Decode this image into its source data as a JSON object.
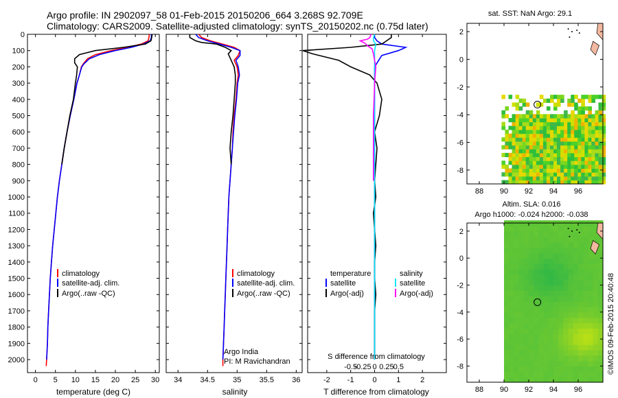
{
  "header": {
    "title_line1": "Argo profile: IN 2902097_58 01-Feb-2015 20150206_664 3.268S 92.709E",
    "title_line2": "Climatology: CARS2009. Satellite-adjusted climatology: synTS_20150202.nc (0.75d later)"
  },
  "footer": {
    "credit": "©IMOS 09-Feb-2015 20:40:48"
  },
  "colors": {
    "climatology": "#ff0000",
    "satellite": "#0000ff",
    "argo": "#000000",
    "salinity_satellite": "#00e5ff",
    "salinity_argo": "#ff00ff"
  },
  "chart_data": [
    {
      "id": "temperature_panel",
      "type": "line",
      "xlabel": "temperature (deg C)",
      "ylabel": "",
      "xlim": [
        -2,
        31
      ],
      "ylim": [
        2080,
        0
      ],
      "xticks": [
        0,
        5,
        10,
        15,
        20,
        25,
        30
      ],
      "yticks": [
        0,
        100,
        200,
        300,
        400,
        500,
        600,
        700,
        800,
        900,
        1000,
        1100,
        1200,
        1300,
        1400,
        1500,
        1600,
        1700,
        1800,
        1900,
        2000
      ],
      "legend": [
        "climatology",
        "satellite-adj. clim.",
        "Argo(..raw -QC)"
      ],
      "legend_position": "lower-right",
      "series": [
        {
          "name": "climatology",
          "color": "#ff0000",
          "points": [
            [
              28.5,
              0
            ],
            [
              28.4,
              20
            ],
            [
              28.2,
              40
            ],
            [
              26.5,
              60
            ],
            [
              23,
              80
            ],
            [
              19,
              100
            ],
            [
              15,
              125
            ],
            [
              13,
              150
            ],
            [
              12,
              180
            ],
            [
              11.5,
              200
            ],
            [
              11,
              250
            ],
            [
              10.4,
              300
            ],
            [
              9.6,
              400
            ],
            [
              8.7,
              500
            ],
            [
              7.9,
              600
            ],
            [
              7.2,
              700
            ],
            [
              6.6,
              800
            ],
            [
              6,
              900
            ],
            [
              5.5,
              1000
            ],
            [
              5.1,
              1100
            ],
            [
              4.7,
              1200
            ],
            [
              4.3,
              1300
            ],
            [
              4,
              1400
            ],
            [
              3.7,
              1500
            ],
            [
              3.5,
              1600
            ],
            [
              3.3,
              1700
            ],
            [
              3.1,
              1800
            ],
            [
              3,
              1900
            ],
            [
              2.8,
              2000
            ],
            [
              2.7,
              2040
            ]
          ]
        },
        {
          "name": "satellite-adj. clim.",
          "color": "#0000ff",
          "points": [
            [
              29,
              0
            ],
            [
              29,
              20
            ],
            [
              28.7,
              40
            ],
            [
              27,
              60
            ],
            [
              24,
              80
            ],
            [
              20,
              100
            ],
            [
              16,
              125
            ],
            [
              13.5,
              150
            ],
            [
              12.2,
              180
            ],
            [
              11.6,
              200
            ],
            [
              11,
              250
            ],
            [
              10.4,
              300
            ],
            [
              9.6,
              400
            ],
            [
              8.7,
              500
            ],
            [
              7.9,
              600
            ],
            [
              7.2,
              700
            ],
            [
              6.6,
              800
            ],
            [
              6,
              900
            ],
            [
              5.5,
              1000
            ],
            [
              5.1,
              1100
            ],
            [
              4.7,
              1200
            ],
            [
              4.3,
              1300
            ],
            [
              4,
              1400
            ],
            [
              3.7,
              1500
            ],
            [
              3.5,
              1600
            ],
            [
              3.3,
              1700
            ],
            [
              3.1,
              1800
            ],
            [
              3,
              1900
            ],
            [
              2.8,
              2000
            ]
          ]
        },
        {
          "name": "Argo(..raw -QC)",
          "color": "#000000",
          "points": [
            [
              29.2,
              0
            ],
            [
              29.1,
              20
            ],
            [
              28.9,
              40
            ],
            [
              27.5,
              60
            ],
            [
              22,
              80
            ],
            [
              15,
              100
            ],
            [
              11,
              125
            ],
            [
              9.8,
              150
            ],
            [
              9.8,
              175
            ],
            [
              10.5,
              200
            ],
            [
              10.3,
              250
            ],
            [
              10,
              300
            ],
            [
              9.5,
              400
            ],
            [
              8.6,
              500
            ],
            [
              7.9,
              600
            ],
            [
              7.2,
              700
            ],
            [
              6.6,
              800
            ]
          ]
        }
      ]
    },
    {
      "id": "salinity_panel",
      "type": "line",
      "xlabel": "salinity",
      "xlim": [
        33.8,
        36.1
      ],
      "ylim": [
        2080,
        0
      ],
      "xticks": [
        34,
        34.5,
        35,
        35.5,
        36
      ],
      "legend": [
        "climatology",
        "satellite-adj. clim.",
        "Argo(..raw -QC)"
      ],
      "legend_position": "lower-right",
      "annotation_line1": "Argo India",
      "annotation_line2": "PI: M Ravichandran",
      "series": [
        {
          "name": "climatology",
          "color": "#ff0000",
          "points": [
            [
              34.35,
              0
            ],
            [
              34.4,
              20
            ],
            [
              34.55,
              40
            ],
            [
              34.75,
              60
            ],
            [
              34.95,
              80
            ],
            [
              35.05,
              100
            ],
            [
              35.02,
              130
            ],
            [
              34.95,
              160
            ],
            [
              35,
              200
            ],
            [
              35.02,
              250
            ],
            [
              35,
              300
            ],
            [
              34.98,
              400
            ],
            [
              34.95,
              500
            ],
            [
              34.93,
              600
            ],
            [
              34.92,
              700
            ],
            [
              34.9,
              800
            ],
            [
              34.88,
              900
            ],
            [
              34.86,
              1000
            ],
            [
              34.85,
              1100
            ],
            [
              34.84,
              1200
            ],
            [
              34.83,
              1300
            ],
            [
              34.82,
              1400
            ],
            [
              34.81,
              1500
            ],
            [
              34.8,
              1600
            ],
            [
              34.79,
              1700
            ],
            [
              34.78,
              1800
            ],
            [
              34.77,
              1900
            ],
            [
              34.76,
              2000
            ],
            [
              34.76,
              2040
            ]
          ]
        },
        {
          "name": "satellite-adj. clim.",
          "color": "#0000ff",
          "points": [
            [
              34.3,
              0
            ],
            [
              34.35,
              20
            ],
            [
              34.5,
              40
            ],
            [
              34.7,
              60
            ],
            [
              34.9,
              80
            ],
            [
              35.05,
              100
            ],
            [
              35.05,
              130
            ],
            [
              34.98,
              160
            ],
            [
              35.02,
              200
            ],
            [
              35.04,
              250
            ],
            [
              35.01,
              300
            ],
            [
              34.99,
              400
            ],
            [
              34.96,
              500
            ],
            [
              34.94,
              600
            ],
            [
              34.92,
              700
            ],
            [
              34.9,
              800
            ],
            [
              34.88,
              900
            ],
            [
              34.86,
              1000
            ],
            [
              34.85,
              1100
            ],
            [
              34.84,
              1200
            ],
            [
              34.83,
              1300
            ],
            [
              34.82,
              1400
            ],
            [
              34.81,
              1500
            ],
            [
              34.8,
              1600
            ],
            [
              34.79,
              1700
            ],
            [
              34.78,
              1800
            ],
            [
              34.77,
              1900
            ],
            [
              34.76,
              2000
            ]
          ]
        },
        {
          "name": "Argo(..raw -QC)",
          "color": "#000000",
          "points": [
            [
              34.2,
              0
            ],
            [
              34.2,
              20
            ],
            [
              34.3,
              40
            ],
            [
              34.4,
              50
            ],
            [
              34.65,
              60
            ],
            [
              34.8,
              80
            ],
            [
              34.9,
              100
            ],
            [
              34.85,
              120
            ],
            [
              34.9,
              160
            ],
            [
              34.95,
              200
            ],
            [
              34.97,
              250
            ],
            [
              34.97,
              300
            ],
            [
              34.95,
              400
            ],
            [
              34.93,
              500
            ],
            [
              34.9,
              600
            ],
            [
              34.88,
              700
            ],
            [
              34.9,
              800
            ]
          ]
        }
      ]
    },
    {
      "id": "difference_panel",
      "type": "line",
      "xlabel_bottom": "T difference from climatology",
      "xlabel_top": "S difference from climatology",
      "xlim": [
        -2.8,
        3.0
      ],
      "ylim": [
        2080,
        0
      ],
      "xticks_T": [
        -2,
        -1,
        0,
        1,
        2
      ],
      "xticks_S": [
        -0.5,
        -0.25,
        0,
        0.25,
        0.5
      ],
      "xticks_S_labels": [
        "-0.5",
        "-0.25",
        "0",
        "0.25",
        "0.5"
      ],
      "legend_temperature_title": "temperature",
      "legend_salinity_title": "salinity",
      "legend": [
        "satellite",
        "Argo(-adj)",
        "satellite",
        "Argo(-adj)"
      ],
      "legend_position": "lower-center",
      "series": [
        {
          "name": "temperature satellite",
          "color": "#0000ff",
          "points": [
            [
              0,
              0
            ],
            [
              0,
              20
            ],
            [
              0.1,
              40
            ],
            [
              0.3,
              60
            ],
            [
              1.3,
              80
            ],
            [
              1.0,
              100
            ],
            [
              0.3,
              130
            ],
            [
              0,
              200
            ],
            [
              0,
              300
            ],
            [
              0,
              2000
            ]
          ]
        },
        {
          "name": "temperature Argo(-adj)",
          "color": "#000000",
          "points": [
            [
              0.7,
              0
            ],
            [
              0.7,
              20
            ],
            [
              0.5,
              40
            ],
            [
              0.3,
              60
            ],
            [
              -1,
              80
            ],
            [
              -3,
              100
            ],
            [
              -2.6,
              120
            ],
            [
              -1.5,
              160
            ],
            [
              -1,
              200
            ],
            [
              -0.2,
              250
            ],
            [
              0.1,
              300
            ],
            [
              0.3,
              400
            ],
            [
              0.2,
              500
            ],
            [
              0,
              600
            ],
            [
              0.1,
              700
            ],
            [
              0.05,
              800
            ],
            [
              0,
              900
            ],
            [
              0.05,
              1000
            ],
            [
              -0.05,
              1100
            ],
            [
              0,
              1200
            ],
            [
              0.05,
              1300
            ],
            [
              0,
              1400
            ],
            [
              0,
              1500
            ],
            [
              0.05,
              1600
            ],
            [
              0,
              1700
            ],
            [
              0,
              1800
            ],
            [
              0,
              1900
            ],
            [
              0,
              2000
            ]
          ]
        },
        {
          "name": "salinity satellite",
          "color": "#00e5ff",
          "points": [
            [
              0,
              0
            ],
            [
              -0.05,
              20
            ],
            [
              -0.05,
              40
            ],
            [
              0.05,
              60
            ],
            [
              0,
              100
            ],
            [
              0,
              200
            ],
            [
              0,
              400
            ],
            [
              0,
              1000
            ],
            [
              0,
              2000
            ]
          ]
        },
        {
          "name": "salinity Argo(-adj)",
          "color": "#ff00ff",
          "points": [
            [
              -0.15,
              0
            ],
            [
              -0.2,
              20
            ],
            [
              -0.3,
              30
            ],
            [
              -0.6,
              40
            ],
            [
              -0.4,
              55
            ],
            [
              -0.3,
              70
            ],
            [
              -0.1,
              90
            ],
            [
              -0.05,
              120
            ],
            [
              0.05,
              200
            ],
            [
              0,
              300
            ],
            [
              -0.02,
              400
            ],
            [
              -0.05,
              500
            ],
            [
              -0.05,
              600
            ],
            [
              -0.05,
              700
            ],
            [
              -0.05,
              800
            ],
            [
              -0.05,
              900
            ]
          ]
        }
      ]
    },
    {
      "id": "sst_map",
      "type": "heatmap",
      "title": "sat. SST: NaN Argo: 29.1",
      "xlim": [
        87,
        98
      ],
      "ylim": [
        -9,
        2.6
      ],
      "xticks": [
        88,
        90,
        92,
        94,
        96
      ],
      "yticks": [
        -8,
        -6,
        -4,
        -2,
        0,
        2
      ],
      "marker": [
        92.7,
        -3.27
      ],
      "land_color": "#f2b8a0",
      "data_extent_lon": [
        89.8,
        98
      ],
      "data_extent_lat": [
        -9,
        -2.8
      ]
    },
    {
      "id": "sla_map",
      "type": "heatmap",
      "title_line1": "Altim. SLA: 0.016",
      "title_line2": "Argo h1000: -0.024 h2000: -0.038",
      "xlim": [
        87,
        98
      ],
      "ylim": [
        -9.2,
        2.6
      ],
      "xticks": [
        88,
        90,
        92,
        94,
        96
      ],
      "yticks": [
        -8,
        -6,
        -4,
        -2,
        0,
        2
      ],
      "marker": [
        92.7,
        -3.27
      ],
      "land_color": "#f2b8a0",
      "data_extent_lon": [
        90,
        98
      ]
    }
  ]
}
